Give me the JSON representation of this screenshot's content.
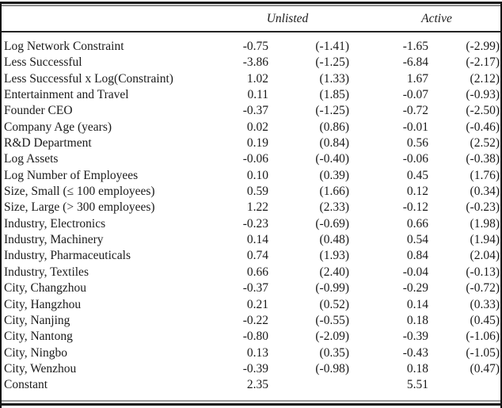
{
  "table": {
    "column_groups": [
      {
        "label": "Unlisted"
      },
      {
        "label": "Active"
      }
    ],
    "columns": [
      "variable",
      "coefficient",
      "t_statistic",
      "coefficient",
      "t_statistic"
    ],
    "rows": [
      [
        "Log Network Constraint",
        "-0.75",
        "(-1.41)",
        "-1.65",
        "(-2.99)"
      ],
      [
        "Less Successful",
        "-3.86",
        "(-1.25)",
        "-6.84",
        "(-2.17)"
      ],
      [
        "Less Successful x Log(Constraint)",
        "1.02",
        "(1.33)",
        "1.67",
        "(2.12)"
      ],
      [
        "Entertainment and Travel",
        "0.11",
        "(1.85)",
        "-0.07",
        "(-0.93)"
      ],
      [
        "Founder CEO",
        "-0.37",
        "(-1.25)",
        "-0.72",
        "(-2.50)"
      ],
      [
        "Company Age (years)",
        "0.02",
        "(0.86)",
        "-0.01",
        "(-0.46)"
      ],
      [
        "R&D Department",
        "0.19",
        "(0.84)",
        "0.56",
        "(2.52)"
      ],
      [
        "Log Assets",
        "-0.06",
        "(-0.40)",
        "-0.06",
        "(-0.38)"
      ],
      [
        "Log Number of Employees",
        "0.10",
        "(0.39)",
        "0.45",
        "(1.76)"
      ],
      [
        "Size, Small (≤ 100 employees)",
        "0.59",
        "(1.66)",
        "0.12",
        "(0.34)"
      ],
      [
        "Size, Large (> 300 employees)",
        "1.22",
        "(2.33)",
        "-0.12",
        "(-0.23)"
      ],
      [
        "Industry, Electronics",
        "-0.23",
        "(-0.69)",
        "0.66",
        "(1.98)"
      ],
      [
        "Industry, Machinery",
        "0.14",
        "(0.48)",
        "0.54",
        "(1.94)"
      ],
      [
        "Industry, Pharmaceuticals",
        "0.74",
        "(1.93)",
        "0.84",
        "(2.04)"
      ],
      [
        "Industry, Textiles",
        "0.66",
        "(2.40)",
        "-0.04",
        "(-0.13)"
      ],
      [
        "City, Changzhou",
        "-0.37",
        "(-0.99)",
        "-0.29",
        "(-0.72)"
      ],
      [
        "City, Hangzhou",
        "0.21",
        "(0.52)",
        "0.14",
        "(0.33)"
      ],
      [
        "City, Nanjing",
        "-0.22",
        "(-0.55)",
        "0.18",
        "(0.45)"
      ],
      [
        "City, Nantong",
        "-0.80",
        "(-2.09)",
        "-0.39",
        "(-1.06)"
      ],
      [
        "City, Ningbo",
        "0.13",
        "(0.35)",
        "-0.43",
        "(-1.05)"
      ],
      [
        "City, Wenzhou",
        "-0.39",
        "(-0.98)",
        "0.18",
        "(0.47)"
      ],
      [
        "Constant",
        "2.35",
        "",
        "5.51",
        ""
      ]
    ],
    "colors": {
      "text": "#1a1a1a",
      "rule_dark": "#171717",
      "rule_light": "#8c8c8c",
      "background": "#ffffff"
    }
  }
}
